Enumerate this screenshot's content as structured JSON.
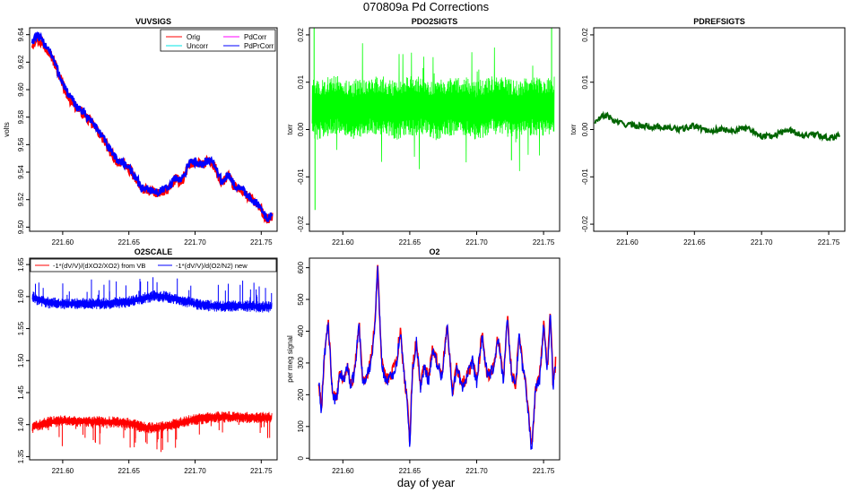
{
  "page": {
    "title": "070809a   Pd Corrections",
    "x_axis_label": "day of year"
  },
  "chart_data": [
    {
      "id": "vuvsigs",
      "type": "line",
      "title": "VUVSIGS",
      "ylabel": "volts",
      "xlim": [
        221.575,
        221.762
      ],
      "ylim": [
        9.497,
        9.645
      ],
      "xticks": [
        "221.60",
        "221.65",
        "221.70",
        "221.75"
      ],
      "yticks": [
        "9.50",
        "9.52",
        "9.54",
        "9.56",
        "9.58",
        "9.60",
        "9.62",
        "9.64"
      ],
      "legend": {
        "position": "top-right",
        "entries": [
          {
            "label": "Orig",
            "color": "#ff0000"
          },
          {
            "label": "PdCorr",
            "color": "#ff00ff"
          },
          {
            "label": "Uncorr",
            "color": "#00e5e5"
          },
          {
            "label": "PdPrCorr",
            "color": "#0000ff"
          }
        ]
      },
      "series": [
        {
          "name": "Orig",
          "color": "#ff0000",
          "x": [
            221.577,
            221.58,
            221.585,
            221.59,
            221.595,
            221.6,
            221.605,
            221.61,
            221.615,
            221.62,
            221.625,
            221.63,
            221.635,
            221.64,
            221.645,
            221.65,
            221.655,
            221.66,
            221.665,
            221.67,
            221.675,
            221.68,
            221.685,
            221.69,
            221.695,
            221.7,
            221.705,
            221.71,
            221.715,
            221.72,
            221.725,
            221.73,
            221.735,
            221.74,
            221.745,
            221.75,
            221.755,
            221.758
          ],
          "y": [
            9.633,
            9.638,
            9.633,
            9.628,
            9.616,
            9.604,
            9.594,
            9.588,
            9.583,
            9.578,
            9.572,
            9.565,
            9.556,
            9.549,
            9.546,
            9.543,
            9.535,
            9.527,
            9.527,
            9.524,
            9.526,
            9.527,
            9.535,
            9.533,
            9.545,
            9.547,
            9.545,
            9.548,
            9.544,
            9.532,
            9.537,
            9.529,
            9.527,
            9.522,
            9.518,
            9.512,
            9.505,
            9.508
          ]
        },
        {
          "name": "PdPrCorr",
          "color": "#0000ff",
          "x": [
            221.577,
            221.58,
            221.585,
            221.59,
            221.595,
            221.6,
            221.605,
            221.61,
            221.615,
            221.62,
            221.625,
            221.63,
            221.635,
            221.64,
            221.645,
            221.65,
            221.655,
            221.66,
            221.665,
            221.67,
            221.675,
            221.68,
            221.685,
            221.69,
            221.695,
            221.7,
            221.705,
            221.71,
            221.715,
            221.72,
            221.725,
            221.73,
            221.735,
            221.74,
            221.745,
            221.75,
            221.755,
            221.758
          ],
          "y": [
            9.635,
            9.639,
            9.635,
            9.629,
            9.617,
            9.605,
            9.595,
            9.589,
            9.584,
            9.579,
            9.573,
            9.566,
            9.557,
            9.55,
            9.547,
            9.544,
            9.536,
            9.528,
            9.528,
            9.525,
            9.527,
            9.528,
            9.536,
            9.534,
            9.546,
            9.548,
            9.546,
            9.549,
            9.545,
            9.533,
            9.538,
            9.53,
            9.528,
            9.523,
            9.519,
            9.513,
            9.506,
            9.509
          ]
        }
      ]
    },
    {
      "id": "pdo2sigts",
      "type": "line",
      "title": "PDO2SIGTS",
      "ylabel": "torr",
      "xlim": [
        221.575,
        221.762
      ],
      "ylim": [
        -0.0215,
        0.0215
      ],
      "xticks": [
        "221.60",
        "221.65",
        "221.70",
        "221.75"
      ],
      "yticks": [
        "-0.02",
        "-0.01",
        "0.00",
        "0.01",
        "0.02"
      ],
      "series": [
        {
          "color": "#00ff00",
          "x": [
            221.577,
            221.58,
            221.59,
            221.6,
            221.61,
            221.62,
            221.63,
            221.64,
            221.65,
            221.66,
            221.67,
            221.68,
            221.69,
            221.7,
            221.71,
            221.72,
            221.73,
            221.74,
            221.75,
            221.758
          ],
          "y": [
            0.005,
            0.004,
            0.005,
            0.005,
            0.004,
            0.005,
            0.005,
            0.004,
            0.005,
            0.005,
            0.004,
            0.005,
            0.005,
            0.004,
            0.005,
            0.005,
            0.004,
            0.005,
            0.005,
            0.005
          ],
          "spread": 0.0045
        }
      ]
    },
    {
      "id": "pdrefsigts",
      "type": "line",
      "title": "PDREFSIGTS",
      "ylabel": "torr",
      "xlim": [
        221.575,
        221.762
      ],
      "ylim": [
        -0.0215,
        0.0215
      ],
      "xticks": [
        "221.60",
        "221.65",
        "221.70",
        "221.75"
      ],
      "yticks": [
        "-0.02",
        "-0.01",
        "0.00",
        "0.01",
        "0.02"
      ],
      "series": [
        {
          "color": "#006400",
          "x": [
            221.576,
            221.58,
            221.585,
            221.59,
            221.595,
            221.6,
            221.61,
            221.62,
            221.63,
            221.64,
            221.65,
            221.66,
            221.67,
            221.68,
            221.69,
            221.7,
            221.71,
            221.72,
            221.73,
            221.74,
            221.75,
            221.758
          ],
          "y": [
            0.0015,
            0.0025,
            0.003,
            0.0018,
            0.0014,
            0.001,
            0.0008,
            0.0006,
            0.0004,
            0.0,
            0.0008,
            -0.0002,
            0.0,
            -0.0002,
            0.0003,
            -0.0014,
            -0.0012,
            0.0,
            -0.0012,
            -0.001,
            -0.0018,
            -0.0012
          ]
        }
      ]
    },
    {
      "id": "o2scale",
      "type": "line",
      "title": "O2SCALE",
      "ylabel": "",
      "xlim": [
        221.575,
        221.762
      ],
      "ylim": [
        1.345,
        1.66
      ],
      "xticks": [
        "221.60",
        "221.65",
        "221.70",
        "221.75"
      ],
      "yticks": [
        "1.35",
        "1.40",
        "1.45",
        "1.50",
        "1.55",
        "1.60",
        "1.65"
      ],
      "legend": {
        "position": "top",
        "entries": [
          {
            "label": "-1*(dV/V)/(dXO2/XO2) from VB",
            "color": "#ff0000"
          },
          {
            "label": "-1*(dV/V)/d(O2/N2) new",
            "color": "#0000ff"
          }
        ]
      },
      "series": [
        {
          "name": "-1*(dV/V)/(dXO2/XO2) from VB",
          "color": "#ff0000",
          "x": [
            221.577,
            221.58,
            221.59,
            221.6,
            221.61,
            221.62,
            221.63,
            221.64,
            221.65,
            221.66,
            221.67,
            221.68,
            221.69,
            221.7,
            221.71,
            221.72,
            221.73,
            221.74,
            221.75,
            221.758
          ],
          "y": [
            1.395,
            1.398,
            1.404,
            1.406,
            1.405,
            1.405,
            1.404,
            1.404,
            1.402,
            1.396,
            1.394,
            1.398,
            1.403,
            1.408,
            1.411,
            1.412,
            1.412,
            1.411,
            1.411,
            1.411
          ]
        },
        {
          "name": "-1*(dV/V)/d(O2/N2) new",
          "color": "#0000ff",
          "x": [
            221.577,
            221.58,
            221.59,
            221.6,
            221.61,
            221.62,
            221.63,
            221.64,
            221.65,
            221.66,
            221.67,
            221.68,
            221.69,
            221.7,
            221.71,
            221.72,
            221.73,
            221.74,
            221.75,
            221.758
          ],
          "y": [
            1.6,
            1.596,
            1.59,
            1.589,
            1.589,
            1.589,
            1.589,
            1.59,
            1.592,
            1.597,
            1.601,
            1.599,
            1.594,
            1.589,
            1.586,
            1.585,
            1.585,
            1.585,
            1.584,
            1.584
          ]
        }
      ]
    },
    {
      "id": "o2",
      "type": "line",
      "title": "O2",
      "ylabel": "per meg signal",
      "xlim": [
        221.575,
        221.762
      ],
      "ylim": [
        -5,
        630
      ],
      "xticks": [
        "221.60",
        "221.65",
        "221.70",
        "221.75"
      ],
      "yticks": [
        "0",
        "100",
        "200",
        "300",
        "400",
        "500",
        "600"
      ],
      "series": [
        {
          "name": "red",
          "color": "#ff0000",
          "x": [
            221.582,
            221.584,
            221.586,
            221.589,
            221.592,
            221.595,
            221.598,
            221.601,
            221.603,
            221.606,
            221.609,
            221.612,
            221.615,
            221.618,
            221.621,
            221.624,
            221.626,
            221.629,
            221.632,
            221.636,
            221.64,
            221.643,
            221.646,
            221.648,
            221.65,
            221.652,
            221.655,
            221.658,
            221.661,
            221.664,
            221.667,
            221.671,
            221.674,
            221.678,
            221.682,
            221.685,
            221.689,
            221.693,
            221.697,
            221.7,
            221.704,
            221.708,
            221.712,
            221.716,
            221.72,
            221.723,
            221.726,
            221.729,
            221.732,
            221.734,
            221.736,
            221.738,
            221.741,
            221.744,
            221.747,
            221.75,
            221.753,
            221.755,
            221.757,
            221.759
          ],
          "y": [
            240,
            150,
            320,
            430,
            220,
            180,
            270,
            250,
            300,
            230,
            280,
            430,
            240,
            260,
            310,
            420,
            620,
            300,
            250,
            260,
            300,
            410,
            250,
            200,
            40,
            280,
            370,
            230,
            290,
            250,
            340,
            300,
            260,
            420,
            210,
            290,
            230,
            260,
            310,
            240,
            390,
            260,
            280,
            380,
            250,
            450,
            270,
            230,
            400,
            300,
            260,
            170,
            30,
            220,
            250,
            420,
            280,
            480,
            230,
            300
          ]
        },
        {
          "name": "blue",
          "color": "#0000ff",
          "x": [
            221.582,
            221.584,
            221.586,
            221.589,
            221.592,
            221.595,
            221.598,
            221.601,
            221.603,
            221.606,
            221.609,
            221.612,
            221.615,
            221.618,
            221.621,
            221.624,
            221.626,
            221.629,
            221.632,
            221.636,
            221.64,
            221.643,
            221.646,
            221.648,
            221.65,
            221.652,
            221.655,
            221.658,
            221.661,
            221.664,
            221.667,
            221.671,
            221.674,
            221.678,
            221.682,
            221.685,
            221.689,
            221.693,
            221.697,
            221.7,
            221.704,
            221.708,
            221.712,
            221.716,
            221.72,
            221.723,
            221.726,
            221.729,
            221.732,
            221.734,
            221.736,
            221.738,
            221.741,
            221.744,
            221.747,
            221.75,
            221.753,
            221.755,
            221.757,
            221.759
          ],
          "y": [
            235,
            145,
            315,
            425,
            215,
            175,
            265,
            245,
            295,
            225,
            275,
            425,
            235,
            255,
            305,
            415,
            615,
            295,
            245,
            255,
            295,
            405,
            245,
            195,
            35,
            275,
            365,
            225,
            285,
            245,
            335,
            295,
            255,
            415,
            205,
            285,
            225,
            255,
            305,
            235,
            385,
            255,
            275,
            375,
            245,
            445,
            265,
            225,
            395,
            295,
            255,
            165,
            25,
            215,
            245,
            415,
            275,
            470,
            225,
            295
          ]
        }
      ]
    }
  ]
}
